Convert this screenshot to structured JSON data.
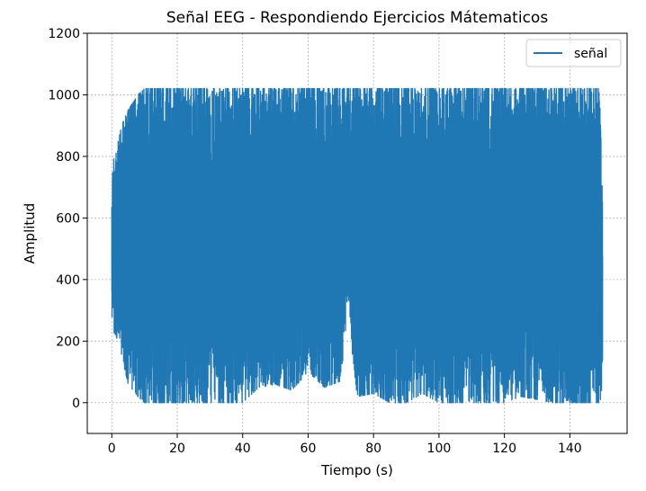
{
  "chart_data": {
    "type": "line",
    "title": "Señal EEG - Respondiendo Ejercicios Mátematicos",
    "xlabel": "Tiempo (s)",
    "ylabel": "Amplitud",
    "xlim": [
      -7.5,
      157.5
    ],
    "ylim": [
      -100,
      1200
    ],
    "x_ticks": [
      0,
      20,
      40,
      60,
      80,
      100,
      120,
      140
    ],
    "y_ticks": [
      0,
      200,
      400,
      600,
      800,
      1000,
      1200
    ],
    "grid": true,
    "legend_position": "top-right",
    "color": "#1f77b4",
    "series": [
      {
        "name": "señal",
        "x_range": [
          0,
          150
        ],
        "value_range": [
          0,
          1020
        ],
        "envelope": {
          "x": [
            0,
            1,
            2,
            3,
            5,
            8,
            10,
            15,
            20,
            25,
            30,
            35,
            40,
            45,
            50,
            55,
            60,
            65,
            70,
            72,
            75,
            80,
            85,
            90,
            95,
            100,
            105,
            110,
            115,
            120,
            125,
            130,
            135,
            140,
            145,
            149,
            150
          ],
          "low": [
            250,
            220,
            200,
            150,
            60,
            20,
            0,
            0,
            0,
            0,
            0,
            0,
            0,
            50,
            60,
            40,
            100,
            50,
            70,
            300,
            20,
            30,
            0,
            0,
            30,
            0,
            0,
            0,
            0,
            0,
            20,
            10,
            0,
            0,
            0,
            0,
            30
          ],
          "high": [
            750,
            820,
            850,
            900,
            950,
            1000,
            1020,
            1020,
            1020,
            1020,
            1020,
            1020,
            1020,
            1020,
            1020,
            1020,
            1020,
            1020,
            1020,
            1020,
            1020,
            1020,
            1020,
            1020,
            1020,
            1020,
            1020,
            1020,
            1020,
            1020,
            1020,
            1020,
            1020,
            1020,
            1020,
            1020,
            700
          ]
        }
      }
    ]
  }
}
